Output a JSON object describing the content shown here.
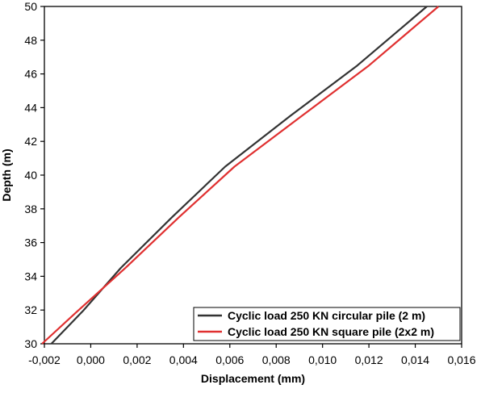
{
  "chart_data": {
    "type": "line",
    "xlabel": "Displacement (mm)",
    "ylabel": "Depth (m)",
    "xlim": [
      -0.002,
      0.016
    ],
    "ylim": [
      30,
      50
    ],
    "xticks": [
      -0.002,
      0.0,
      0.002,
      0.004,
      0.006,
      0.008,
      0.01,
      0.012,
      0.014,
      0.016
    ],
    "xtick_labels": [
      "-0,002",
      "0,000",
      "0,002",
      "0,004",
      "0,006",
      "0,008",
      "0,010",
      "0,012",
      "0,014",
      "0,016"
    ],
    "yticks": [
      30,
      32,
      34,
      36,
      38,
      40,
      42,
      44,
      46,
      48,
      50
    ],
    "ytick_labels": [
      "30",
      "32",
      "34",
      "36",
      "38",
      "40",
      "42",
      "44",
      "46",
      "48",
      "50"
    ],
    "grid": false,
    "legend_position": "bottom-right",
    "series": [
      {
        "name": "Cyclic load 250 KN circular pile (2 m)",
        "color": "#333333",
        "x": [
          -0.0017,
          -0.0003,
          0.0013,
          0.0035,
          0.0058,
          0.0086,
          0.0115,
          0.0145
        ],
        "y": [
          30,
          32,
          34.5,
          37.5,
          40.5,
          43.5,
          46.5,
          50
        ]
      },
      {
        "name": "Cyclic load 250 KN square pile (2x2 m)",
        "color": "#e03030",
        "x": [
          -0.0021,
          -0.0006,
          0.0015,
          0.0038,
          0.0062,
          0.0091,
          0.012,
          0.015
        ],
        "y": [
          30,
          31.9,
          34.5,
          37.5,
          40.5,
          43.5,
          46.5,
          50
        ]
      }
    ]
  }
}
